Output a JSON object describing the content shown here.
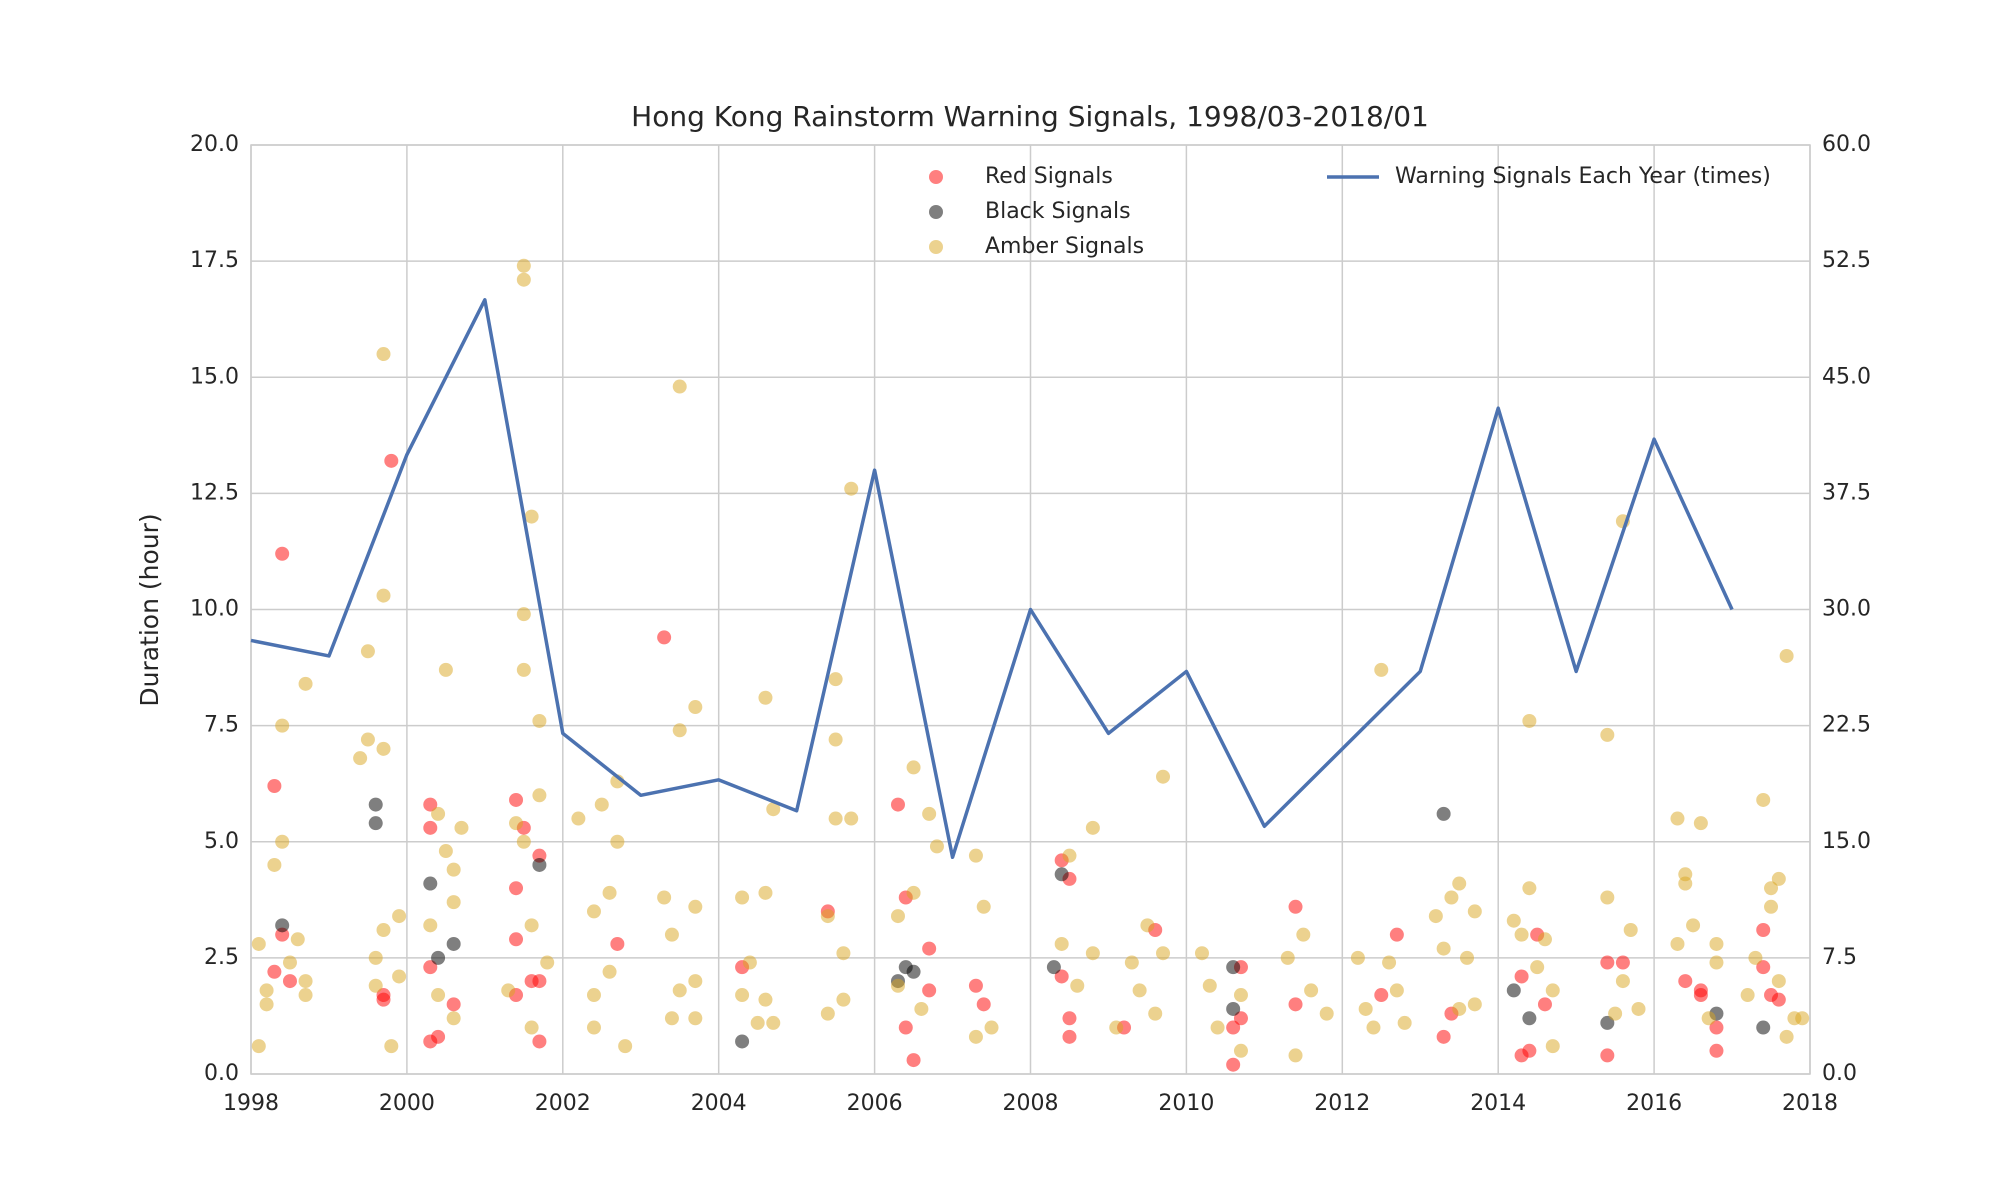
{
  "chart_data": {
    "type": "scatter",
    "title": "Hong Kong Rainstorm Warning Signals, 1998/03-2018/01",
    "ylabel": "Duration (hour)",
    "xlim": [
      1998,
      2018
    ],
    "xticks": [
      1998,
      2000,
      2002,
      2004,
      2006,
      2008,
      2010,
      2012,
      2014,
      2016,
      2018
    ],
    "ylim": [
      0,
      20
    ],
    "yticks": [
      {
        "value": 0,
        "label": "0.0"
      },
      2.5,
      {
        "value": 5,
        "label": "5.0"
      },
      7.5,
      {
        "value": 10,
        "label": "10.0"
      },
      12.5,
      {
        "value": 15,
        "label": "15.0"
      },
      17.5,
      {
        "value": 20,
        "label": "20.0"
      }
    ],
    "y2lim": [
      0,
      60
    ],
    "y2ticks": [
      {
        "value": 0,
        "label": "0.0"
      },
      7.5,
      {
        "value": 15,
        "label": "15.0"
      },
      22.5,
      {
        "value": 30,
        "label": "30.0"
      },
      37.5,
      {
        "value": 45,
        "label": "45.0"
      },
      52.5,
      {
        "value": 60,
        "label": "60.0"
      }
    ],
    "grid": true,
    "series": [
      {
        "name": "Red Signals",
        "type": "scatter",
        "color": "#ff0000",
        "alpha": 0.5,
        "legend": "upper center",
        "x": [
          1998.3,
          1998.3,
          1998.4,
          1998.4,
          1998.5,
          1999.7,
          1999.7,
          1999.8,
          2000.3,
          2000.3,
          2000.3,
          2000.3,
          2000.4,
          2000.6,
          2001.4,
          2001.4,
          2001.4,
          2001.4,
          2001.5,
          2001.6,
          2001.7,
          2001.7,
          2001.7,
          2002.7,
          2003.3,
          2004.3,
          2005.4,
          2006.3,
          2006.4,
          2006.4,
          2006.5,
          2006.7,
          2006.7,
          2007.3,
          2007.4,
          2008.4,
          2008.4,
          2008.5,
          2008.5,
          2008.5,
          2009.2,
          2009.6,
          2010.6,
          2010.6,
          2010.7,
          2010.7,
          2011.4,
          2011.4,
          2012.5,
          2012.7,
          2013.3,
          2013.4,
          2014.3,
          2014.3,
          2014.4,
          2014.5,
          2014.6,
          2015.4,
          2015.4,
          2015.6,
          2016.4,
          2016.6,
          2016.6,
          2016.8,
          2016.8,
          2017.4,
          2017.4,
          2017.5,
          2017.6
        ],
        "values": [
          6.2,
          2.2,
          11.2,
          3.0,
          2.0,
          1.7,
          1.6,
          13.2,
          5.8,
          5.3,
          2.3,
          0.7,
          0.8,
          1.5,
          5.9,
          4.0,
          2.9,
          1.7,
          5.3,
          2.0,
          4.7,
          2.0,
          0.7,
          2.8,
          9.4,
          2.3,
          3.5,
          5.8,
          3.8,
          1.0,
          0.3,
          2.7,
          1.8,
          1.9,
          1.5,
          4.6,
          2.1,
          4.2,
          1.2,
          0.8,
          1.0,
          3.1,
          0.2,
          1.0,
          1.2,
          2.3,
          3.6,
          1.5,
          1.7,
          3.0,
          0.8,
          1.3,
          0.4,
          2.1,
          0.5,
          3.0,
          1.5,
          2.4,
          0.4,
          2.4,
          2.0,
          1.7,
          1.8,
          1.0,
          0.5,
          3.1,
          2.3,
          1.7,
          1.6
        ]
      },
      {
        "name": "Black Signals",
        "type": "scatter",
        "color": "#000000",
        "alpha": 0.5,
        "legend": "upper center",
        "x": [
          1998.4,
          1999.6,
          1999.6,
          2000.3,
          2000.4,
          2000.6,
          2001.7,
          2004.3,
          2006.3,
          2006.4,
          2006.5,
          2008.3,
          2008.4,
          2010.6,
          2010.6,
          2013.3,
          2014.2,
          2014.4,
          2015.4,
          2016.8,
          2017.4
        ],
        "values": [
          3.2,
          5.8,
          5.4,
          4.1,
          2.5,
          2.8,
          4.5,
          0.7,
          2.0,
          2.3,
          2.2,
          2.3,
          4.3,
          2.3,
          1.4,
          5.6,
          1.8,
          1.2,
          1.1,
          1.3,
          1.0
        ]
      },
      {
        "name": "Amber Signals",
        "type": "scatter",
        "color": "#daa520",
        "alpha": 0.5,
        "legend": "upper center",
        "x": [
          1998.1,
          1998.1,
          1998.2,
          1998.2,
          1998.3,
          1998.4,
          1998.4,
          1998.5,
          1998.6,
          1998.7,
          1998.7,
          1998.7,
          1999.4,
          1999.5,
          1999.5,
          1999.6,
          1999.6,
          1999.7,
          1999.7,
          1999.7,
          1999.7,
          1999.8,
          1999.9,
          1999.9,
          2000.3,
          2000.4,
          2000.4,
          2000.5,
          2000.5,
          2000.6,
          2000.6,
          2000.6,
          2000.7,
          2001.3,
          2001.4,
          2001.5,
          2001.5,
          2001.5,
          2001.5,
          2001.5,
          2001.6,
          2001.6,
          2001.6,
          2001.7,
          2001.7,
          2001.8,
          2002.2,
          2002.4,
          2002.4,
          2002.4,
          2002.5,
          2002.6,
          2002.6,
          2002.7,
          2002.7,
          2002.8,
          2003.3,
          2003.4,
          2003.4,
          2003.5,
          2003.5,
          2003.5,
          2003.7,
          2003.7,
          2003.7,
          2003.7,
          2004.3,
          2004.3,
          2004.4,
          2004.5,
          2004.6,
          2004.6,
          2004.6,
          2004.7,
          2004.7,
          2005.4,
          2005.4,
          2005.5,
          2005.5,
          2005.5,
          2005.6,
          2005.6,
          2005.7,
          2005.7,
          2006.3,
          2006.3,
          2006.5,
          2006.5,
          2006.6,
          2006.7,
          2006.8,
          2007.3,
          2007.3,
          2007.4,
          2007.5,
          2008.4,
          2008.5,
          2008.6,
          2008.8,
          2008.8,
          2009.1,
          2009.3,
          2009.4,
          2009.5,
          2009.6,
          2009.7,
          2009.7,
          2010.2,
          2010.3,
          2010.4,
          2010.7,
          2010.7,
          2011.3,
          2011.4,
          2011.5,
          2011.6,
          2011.8,
          2012.2,
          2012.3,
          2012.4,
          2012.5,
          2012.6,
          2012.7,
          2012.8,
          2013.2,
          2013.3,
          2013.4,
          2013.5,
          2013.5,
          2013.6,
          2013.7,
          2013.7,
          2014.2,
          2014.3,
          2014.4,
          2014.4,
          2014.5,
          2014.6,
          2014.7,
          2014.7,
          2015.4,
          2015.4,
          2015.5,
          2015.6,
          2015.6,
          2015.7,
          2015.8,
          2016.3,
          2016.3,
          2016.4,
          2016.4,
          2016.5,
          2016.6,
          2016.7,
          2016.8,
          2016.8,
          2017.2,
          2017.3,
          2017.4,
          2017.5,
          2017.5,
          2017.6,
          2017.6,
          2017.7,
          2017.7,
          2017.8,
          2017.9
        ],
        "values": [
          2.8,
          0.6,
          1.8,
          1.5,
          4.5,
          7.5,
          5.0,
          2.4,
          2.9,
          8.4,
          2.0,
          1.7,
          6.8,
          9.1,
          7.2,
          2.5,
          1.9,
          15.5,
          10.3,
          7.0,
          3.1,
          0.6,
          3.4,
          2.1,
          3.2,
          5.6,
          1.7,
          4.8,
          8.7,
          4.4,
          3.7,
          1.2,
          5.3,
          1.8,
          5.4,
          17.4,
          17.1,
          9.9,
          8.7,
          5.0,
          12.0,
          3.2,
          1.0,
          7.6,
          6.0,
          2.4,
          5.5,
          3.5,
          1.7,
          1.0,
          5.8,
          3.9,
          2.2,
          6.3,
          5.0,
          0.6,
          3.8,
          3.0,
          1.2,
          14.8,
          7.4,
          1.8,
          7.9,
          3.6,
          2.0,
          1.2,
          3.8,
          1.7,
          2.4,
          1.1,
          8.1,
          3.9,
          1.6,
          5.7,
          1.1,
          3.4,
          1.3,
          8.5,
          7.2,
          5.5,
          2.6,
          1.6,
          12.6,
          5.5,
          3.4,
          1.9,
          3.9,
          6.6,
          1.4,
          5.6,
          4.9,
          4.7,
          0.8,
          3.6,
          1.0,
          2.8,
          4.7,
          1.9,
          5.3,
          2.6,
          1.0,
          2.4,
          1.8,
          3.2,
          1.3,
          6.4,
          2.6,
          2.6,
          1.9,
          1.0,
          1.7,
          0.5,
          2.5,
          0.4,
          3.0,
          1.8,
          1.3,
          2.5,
          1.4,
          1.0,
          8.7,
          2.4,
          1.8,
          1.1,
          3.4,
          2.7,
          3.8,
          4.1,
          1.4,
          2.5,
          3.5,
          1.5,
          3.3,
          3.0,
          7.6,
          4.0,
          2.3,
          2.9,
          1.8,
          0.6,
          7.3,
          3.8,
          1.3,
          11.9,
          2.0,
          3.1,
          1.4,
          5.5,
          2.8,
          4.3,
          4.1,
          3.2,
          5.4,
          1.2,
          2.8,
          2.4,
          1.7,
          2.5,
          5.9,
          4.0,
          3.6,
          4.2,
          2.0,
          9.0,
          0.8,
          1.2,
          1.2
        ]
      },
      {
        "name": "Warning Signals Each Year (times)",
        "type": "line",
        "axis": "y2",
        "color": "#4c72b0",
        "legend": "upper right",
        "x": [
          1998,
          1999,
          2000,
          2001,
          2002,
          2003,
          2004,
          2005,
          2006,
          2007,
          2008,
          2009,
          2010,
          2011,
          2012,
          2013,
          2014,
          2015,
          2016,
          2017
        ],
        "values": [
          28,
          27,
          40,
          50,
          22,
          18,
          19,
          17,
          39,
          14,
          30,
          22,
          26,
          16,
          21,
          26,
          43,
          26,
          41,
          30
        ]
      }
    ]
  }
}
